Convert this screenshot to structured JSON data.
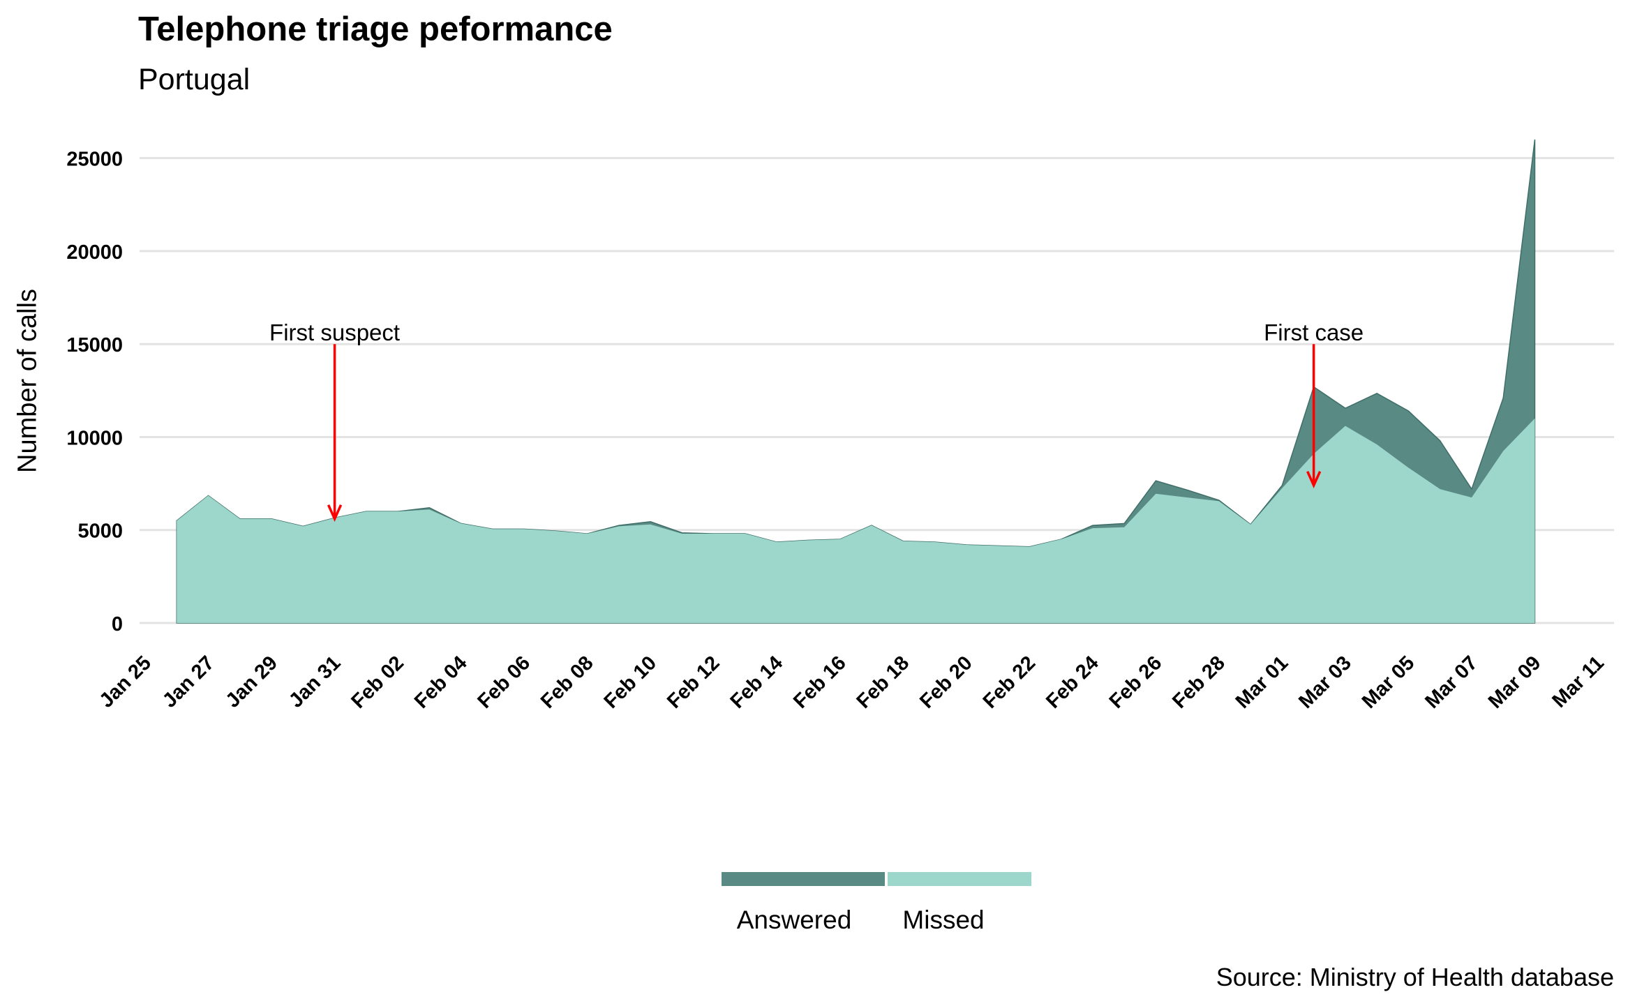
{
  "title": "Telephone triage peformance",
  "subtitle": "Portugal",
  "caption": "Source: Ministry of Health database",
  "chart_data": {
    "type": "area",
    "title": "Telephone triage peformance",
    "subtitle": "Portugal",
    "xlabel": "",
    "ylabel": "Number of calls",
    "ylim": [
      0,
      26000
    ],
    "yticks": [
      0,
      5000,
      10000,
      15000,
      20000,
      25000
    ],
    "xlim": [
      "2020-01-25",
      "2020-03-11"
    ],
    "xtick_labels": [
      "Jan 25",
      "Jan 27",
      "Jan 29",
      "Jan 31",
      "Feb 02",
      "Feb 04",
      "Feb 06",
      "Feb 08",
      "Feb 10",
      "Feb 12",
      "Feb 14",
      "Feb 16",
      "Feb 18",
      "Feb 20",
      "Feb 22",
      "Feb 24",
      "Feb 26",
      "Feb 28",
      "Mar 01",
      "Mar 03",
      "Mar 05",
      "Mar 07",
      "Mar 09",
      "Mar 11"
    ],
    "grid": "horizontal major",
    "legend_position": "bottom",
    "x": [
      "2020-01-26",
      "2020-01-27",
      "2020-01-28",
      "2020-01-29",
      "2020-01-30",
      "2020-01-31",
      "2020-02-01",
      "2020-02-02",
      "2020-02-03",
      "2020-02-04",
      "2020-02-05",
      "2020-02-06",
      "2020-02-07",
      "2020-02-08",
      "2020-02-09",
      "2020-02-10",
      "2020-02-11",
      "2020-02-12",
      "2020-02-13",
      "2020-02-14",
      "2020-02-15",
      "2020-02-16",
      "2020-02-17",
      "2020-02-18",
      "2020-02-19",
      "2020-02-20",
      "2020-02-21",
      "2020-02-22",
      "2020-02-23",
      "2020-02-24",
      "2020-02-25",
      "2020-02-26",
      "2020-02-27",
      "2020-02-28",
      "2020-02-29",
      "2020-03-01",
      "2020-03-02",
      "2020-03-03",
      "2020-03-04",
      "2020-03-05",
      "2020-03-06",
      "2020-03-07",
      "2020-03-08",
      "2020-03-09"
    ],
    "series": [
      {
        "name": "Answered",
        "color": "#5a8a84",
        "values": [
          5500,
          6850,
          5600,
          5600,
          5200,
          5650,
          6000,
          6000,
          6200,
          5350,
          5050,
          5050,
          4950,
          4800,
          5250,
          5450,
          4850,
          4800,
          4800,
          4350,
          4450,
          4500,
          5250,
          4400,
          4350,
          4200,
          4150,
          4100,
          4500,
          5250,
          5350,
          7650,
          7150,
          6600,
          5300,
          7400,
          12700,
          11550,
          12350,
          11400,
          9800,
          7200,
          12100,
          26000
        ]
      },
      {
        "name": "Missed",
        "color": "#9dd7cb",
        "values": [
          5500,
          6850,
          5600,
          5600,
          5200,
          5650,
          6000,
          6000,
          6100,
          5350,
          5050,
          5050,
          4950,
          4800,
          5200,
          5300,
          4800,
          4800,
          4800,
          4350,
          4450,
          4500,
          5250,
          4400,
          4350,
          4200,
          4150,
          4100,
          4500,
          5100,
          5150,
          6950,
          6750,
          6550,
          5300,
          7250,
          9100,
          10600,
          9600,
          8350,
          7200,
          6750,
          9250,
          11000
        ]
      }
    ],
    "annotations": [
      {
        "label": "First suspect",
        "x": "2020-01-31",
        "y_text": 15500,
        "arrow_from": 15000,
        "arrow_to": 5600,
        "color": "#ff0000"
      },
      {
        "label": "First case",
        "x": "2020-03-02",
        "y_text": 15500,
        "arrow_from": 15000,
        "arrow_to": 7400,
        "color": "#ff0000"
      }
    ]
  }
}
